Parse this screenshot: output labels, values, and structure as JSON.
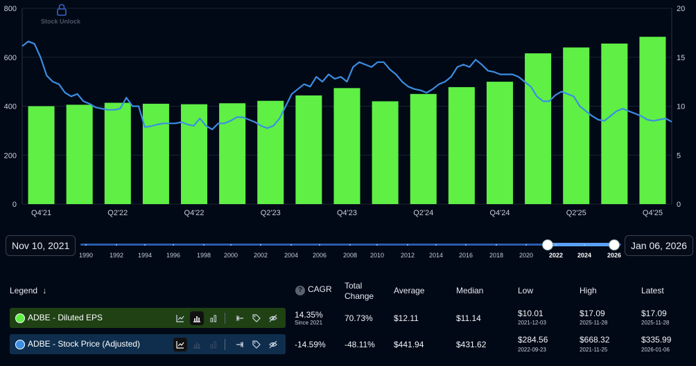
{
  "watermark": "Stock Unlock",
  "chart_data": {
    "type": "bar+line",
    "left_axis": {
      "ticks": [
        "0",
        "200",
        "400",
        "600",
        "800"
      ],
      "range": [
        0,
        800
      ]
    },
    "right_axis": {
      "ticks": [
        "0",
        "5",
        "10",
        "15",
        "20"
      ],
      "range": [
        0,
        20
      ]
    },
    "x_labels": [
      "Q4'21",
      "Q2'22",
      "Q4'22",
      "Q2'23",
      "Q4'23",
      "Q2'24",
      "Q4'24",
      "Q2'25",
      "Q4'25"
    ],
    "series": [
      {
        "name": "ADBE - Diluted EPS",
        "type": "bar",
        "axis": "right",
        "color": "#5fef45",
        "values": [
          10.0,
          10.15,
          10.35,
          10.25,
          10.2,
          10.3,
          10.55,
          11.1,
          11.85,
          10.5,
          11.25,
          11.95,
          12.5,
          15.4,
          16.0,
          16.4,
          17.09
        ]
      },
      {
        "name": "ADBE - Stock Price (Adjusted)",
        "type": "line",
        "axis": "left",
        "color": "#3b8ee3",
        "values": [
          645,
          665,
          655,
          600,
          525,
          500,
          490,
          455,
          440,
          450,
          420,
          410,
          395,
          390,
          385,
          385,
          390,
          435,
          400,
          400,
          315,
          318,
          325,
          330,
          330,
          330,
          335,
          325,
          320,
          350,
          320,
          305,
          330,
          330,
          340,
          355,
          355,
          345,
          335,
          320,
          310,
          320,
          350,
          400,
          450,
          470,
          490,
          480,
          520,
          500,
          530,
          512,
          520,
          500,
          560,
          580,
          570,
          560,
          580,
          580,
          550,
          530,
          500,
          480,
          470,
          465,
          455,
          470,
          490,
          500,
          520,
          560,
          570,
          560,
          590,
          570,
          545,
          540,
          530,
          530,
          530,
          520,
          500,
          480,
          440,
          420,
          420,
          445,
          460,
          450,
          440,
          400,
          380,
          360,
          345,
          340,
          360,
          380,
          390,
          380,
          370,
          360,
          345,
          340,
          345,
          350,
          335.99
        ]
      }
    ]
  },
  "slider": {
    "start_date": "Nov 10, 2021",
    "end_date": "Jan 06, 2026",
    "years": [
      "1990",
      "1992",
      "1994",
      "1996",
      "1998",
      "2000",
      "2002",
      "2004",
      "2006",
      "2008",
      "2010",
      "2012",
      "2014",
      "2016",
      "2018",
      "2020",
      "2022",
      "2024",
      "2026"
    ]
  },
  "legend": {
    "title": "Legend",
    "title_icon": "arrow-down-icon",
    "headers": {
      "cagr": "CAGR",
      "total_change": "Total",
      "total_change_2": "Change",
      "average": "Average",
      "median": "Median",
      "low": "Low",
      "high": "High",
      "latest": "Latest"
    },
    "rows": [
      {
        "name": "ADBE - Diluted EPS",
        "color": "#5fef45",
        "cagr": "14.35%",
        "cagr_sub": "Since 2021",
        "total_change": "70.73%",
        "average": "$12.11",
        "median": "$11.14",
        "low": "$10.01",
        "low_date": "2021-12-03",
        "high": "$17.09",
        "high_date": "2025-11-28",
        "latest": "$17.09",
        "latest_date": "2025-11-28"
      },
      {
        "name": "ADBE - Stock Price (Adjusted)",
        "color": "#3b8ee3",
        "cagr": "-14.59%",
        "total_change": "-48.11%",
        "average": "$441.94",
        "median": "$431.62",
        "low": "$284.56",
        "low_date": "2022-09-23",
        "high": "$668.32",
        "high_date": "2021-11-25",
        "latest": "$335.99",
        "latest_date": "2026-01-06"
      }
    ]
  }
}
